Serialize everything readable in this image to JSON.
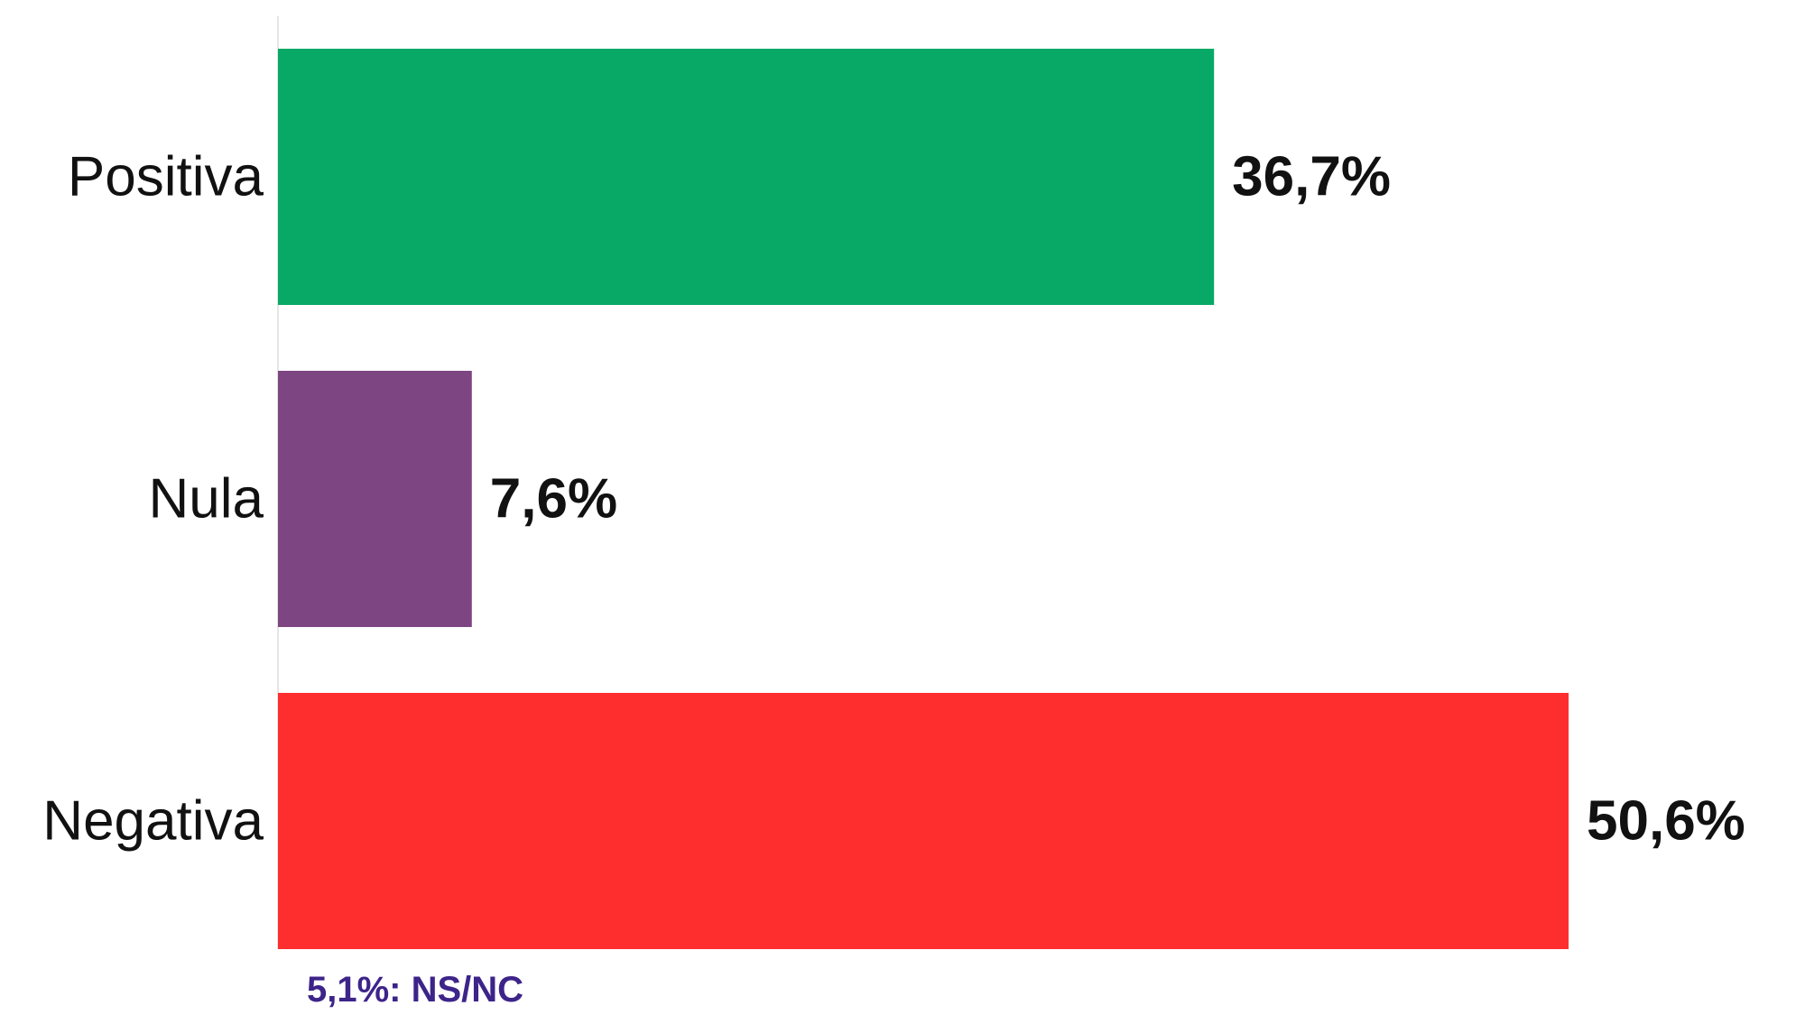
{
  "chart_data": {
    "type": "bar",
    "orientation": "horizontal",
    "categories": [
      "Positiva",
      "Nula",
      "Negativa"
    ],
    "values": [
      36.7,
      7.6,
      50.6
    ],
    "value_labels": [
      "36,7%",
      "7,6%",
      "50,6%"
    ],
    "colors": [
      "#08a966",
      "#7d4582",
      "#ff2e2e"
    ],
    "axis_line_color": "#e6e6e6",
    "xlim": [
      0,
      50.6
    ],
    "grid": false,
    "legend": "none",
    "title": "",
    "xlabel": "",
    "ylabel": ""
  },
  "footnote": {
    "text": "5,1%: NS/NC",
    "color": "#3d2489"
  }
}
